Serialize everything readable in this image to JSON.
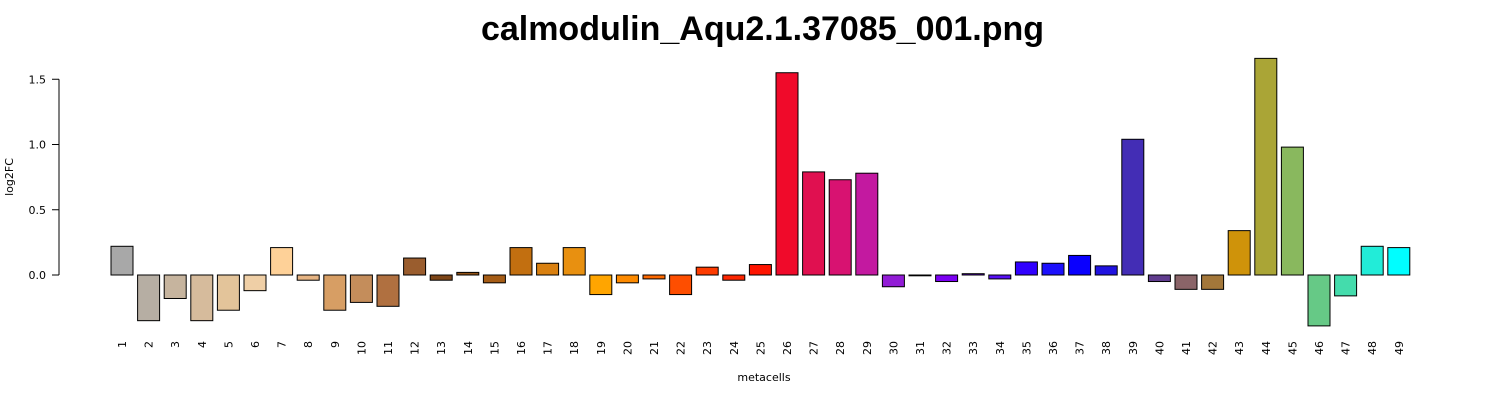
{
  "chart_data": {
    "type": "bar",
    "title": "calmodulin_Aqu2.1.37085_001.png",
    "xlabel": "metacells",
    "ylabel": "log2FC",
    "ylim": [
      -0.42,
      1.65
    ],
    "yticks": [
      0.0,
      0.5,
      1.0,
      1.5
    ],
    "ytick_labels": [
      "0.0",
      "0.5",
      "1.0",
      "1.5"
    ],
    "grid": false,
    "legend": "none",
    "categories": [
      "1",
      "2",
      "3",
      "4",
      "5",
      "6",
      "7",
      "8",
      "9",
      "10",
      "11",
      "12",
      "13",
      "14",
      "15",
      "16",
      "17",
      "18",
      "19",
      "20",
      "21",
      "22",
      "23",
      "24",
      "25",
      "26",
      "27",
      "28",
      "29",
      "30",
      "31",
      "32",
      "33",
      "34",
      "35",
      "36",
      "37",
      "38",
      "39",
      "40",
      "41",
      "42",
      "43",
      "44",
      "45",
      "46",
      "47",
      "48",
      "49"
    ],
    "values": [
      0.22,
      -0.35,
      -0.18,
      -0.35,
      -0.27,
      -0.12,
      0.21,
      -0.04,
      -0.27,
      -0.21,
      -0.24,
      0.13,
      -0.04,
      0.02,
      -0.06,
      0.21,
      0.09,
      0.21,
      -0.15,
      -0.06,
      -0.03,
      -0.15,
      0.06,
      -0.04,
      0.08,
      1.55,
      0.79,
      0.73,
      0.78,
      -0.09,
      0.0,
      -0.05,
      0.01,
      -0.03,
      0.1,
      0.09,
      0.15,
      0.07,
      1.04,
      -0.05,
      -0.11,
      -0.11,
      0.34,
      1.66,
      0.98,
      -0.39,
      -0.16,
      0.22,
      0.21
    ],
    "colors": [
      "#a8a8a8",
      "#b6aea3",
      "#c6b49e",
      "#d6bb9c",
      "#e3c49a",
      "#efcfa6",
      "#fed198",
      "#e6b483",
      "#d79e64",
      "#c48d5b",
      "#b07040",
      "#9a5d2e",
      "#7d4517",
      "#915216",
      "#a55c15",
      "#c26f10",
      "#d98010",
      "#e89010",
      "#ffa500",
      "#fd8a00",
      "#fe6900",
      "#fe4e00",
      "#fd3b00",
      "#fd2600",
      "#fe1400",
      "#f00a2a",
      "#e01050",
      "#d81271",
      "#c319a0",
      "#921cd6",
      "#7a10f0",
      "#7b00f2",
      "#6a00f6",
      "#5710f5",
      "#3000fe",
      "#1c10fc",
      "#0a00fe",
      "#2012e0",
      "#432db5",
      "#603c8e",
      "#8a6468",
      "#a3773a",
      "#cf930a",
      "#aaa536",
      "#89b85e",
      "#66c986",
      "#44dcac",
      "#22ecd8",
      "#00feff"
    ]
  }
}
